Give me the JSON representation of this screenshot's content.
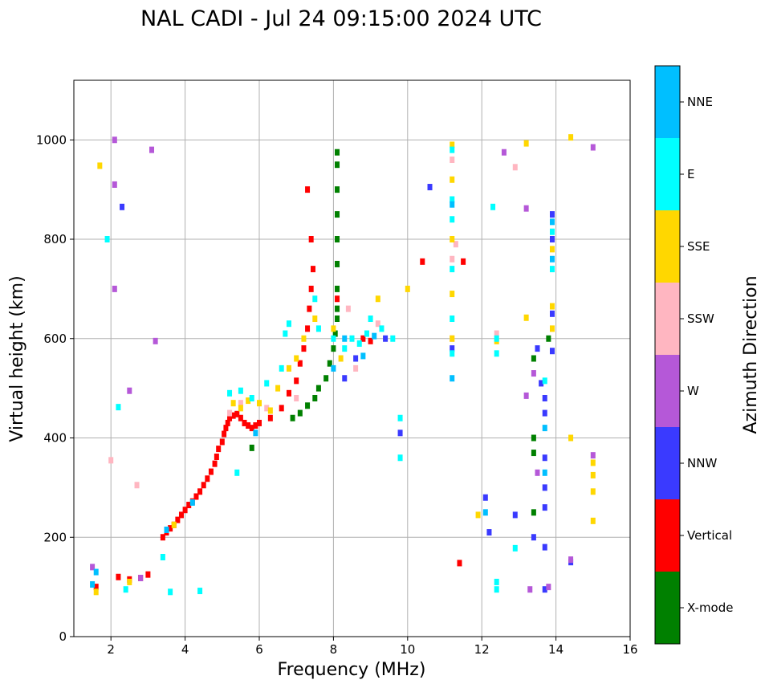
{
  "chart_data": {
    "type": "scatter",
    "title": "NAL CADI - Jul 24 09:15:00 2024 UTC",
    "xlabel": "Frequency (MHz)",
    "ylabel": "Virtual height (km)",
    "xlim": [
      1,
      16
    ],
    "ylim": [
      0,
      1120
    ],
    "xticks": [
      2,
      4,
      6,
      8,
      10,
      12,
      14,
      16
    ],
    "yticks": [
      0,
      200,
      400,
      600,
      800,
      1000
    ],
    "grid": true,
    "colorbar": {
      "label": "Azimuth Direction",
      "categories": [
        {
          "name": "X-mode",
          "color": "#008000"
        },
        {
          "name": "Vertical",
          "color": "#ff0000"
        },
        {
          "name": "NNW",
          "color": "#3a3aff"
        },
        {
          "name": "W",
          "color": "#b558d8"
        },
        {
          "name": "SSW",
          "color": "#ffb6c1"
        },
        {
          "name": "SSE",
          "color": "#ffd700"
        },
        {
          "name": "E",
          "color": "#00ffff"
        },
        {
          "name": "NNE",
          "color": "#00bfff"
        }
      ]
    },
    "series": [
      {
        "name": "Vertical",
        "points": [
          [
            3.4,
            200
          ],
          [
            3.5,
            210
          ],
          [
            3.6,
            218
          ],
          [
            3.7,
            225
          ],
          [
            3.8,
            235
          ],
          [
            3.9,
            245
          ],
          [
            4.0,
            255
          ],
          [
            4.1,
            265
          ],
          [
            4.2,
            272
          ],
          [
            4.3,
            282
          ],
          [
            4.4,
            292
          ],
          [
            4.5,
            305
          ],
          [
            4.6,
            318
          ],
          [
            4.7,
            332
          ],
          [
            4.8,
            348
          ],
          [
            4.85,
            362
          ],
          [
            4.9,
            378
          ],
          [
            5.0,
            392
          ],
          [
            5.05,
            408
          ],
          [
            5.1,
            420
          ],
          [
            5.15,
            430
          ],
          [
            5.2,
            440
          ],
          [
            5.3,
            445
          ],
          [
            5.4,
            448
          ],
          [
            5.5,
            440
          ],
          [
            5.6,
            430
          ],
          [
            5.7,
            425
          ],
          [
            5.8,
            420
          ],
          [
            5.9,
            425
          ],
          [
            6.0,
            430
          ],
          [
            6.3,
            440
          ],
          [
            6.6,
            460
          ],
          [
            6.8,
            490
          ],
          [
            7.0,
            515
          ],
          [
            7.1,
            550
          ],
          [
            7.2,
            580
          ],
          [
            7.3,
            620
          ],
          [
            7.35,
            660
          ],
          [
            7.4,
            700
          ],
          [
            7.45,
            740
          ],
          [
            7.4,
            800
          ],
          [
            7.3,
            900
          ],
          [
            8.1,
            680
          ],
          [
            8.8,
            600
          ],
          [
            9.0,
            595
          ],
          [
            2.2,
            120
          ],
          [
            2.5,
            115
          ],
          [
            2.8,
            118
          ],
          [
            3.0,
            125
          ],
          [
            1.6,
            100
          ],
          [
            11.5,
            755
          ],
          [
            10.4,
            755
          ],
          [
            11.4,
            148
          ]
        ]
      },
      {
        "name": "X-mode",
        "points": [
          [
            6.9,
            440
          ],
          [
            7.1,
            450
          ],
          [
            7.3,
            465
          ],
          [
            7.5,
            480
          ],
          [
            7.6,
            500
          ],
          [
            7.8,
            520
          ],
          [
            7.9,
            550
          ],
          [
            8.0,
            580
          ],
          [
            8.05,
            610
          ],
          [
            8.1,
            640
          ],
          [
            8.1,
            660
          ],
          [
            8.1,
            700
          ],
          [
            8.1,
            750
          ],
          [
            8.1,
            800
          ],
          [
            8.1,
            850
          ],
          [
            8.1,
            900
          ],
          [
            8.1,
            950
          ],
          [
            8.1,
            975
          ],
          [
            5.8,
            380
          ],
          [
            13.4,
            250
          ],
          [
            13.4,
            370
          ],
          [
            13.4,
            400
          ],
          [
            13.4,
            560
          ],
          [
            13.8,
            600
          ]
        ]
      },
      {
        "name": "NNW",
        "points": [
          [
            2.3,
            865
          ],
          [
            8.3,
            520
          ],
          [
            8.6,
            560
          ],
          [
            9.4,
            600
          ],
          [
            9.8,
            410
          ],
          [
            11.2,
            580
          ],
          [
            12.1,
            280
          ],
          [
            12.2,
            210
          ],
          [
            13.4,
            200
          ],
          [
            13.5,
            580
          ],
          [
            13.6,
            510
          ],
          [
            13.7,
            480
          ],
          [
            13.7,
            450
          ],
          [
            13.7,
            360
          ],
          [
            13.7,
            300
          ],
          [
            13.7,
            260
          ],
          [
            13.7,
            180
          ],
          [
            13.7,
            95
          ],
          [
            13.9,
            850
          ],
          [
            13.9,
            800
          ],
          [
            13.9,
            650
          ],
          [
            13.9,
            575
          ],
          [
            10.6,
            905
          ],
          [
            12.9,
            245
          ],
          [
            14.4,
            150
          ]
        ]
      },
      {
        "name": "W",
        "points": [
          [
            2.1,
            1000
          ],
          [
            3.1,
            980
          ],
          [
            3.2,
            595
          ],
          [
            2.5,
            495
          ],
          [
            1.5,
            140
          ],
          [
            2.8,
            118
          ],
          [
            13.2,
            485
          ],
          [
            13.4,
            530
          ],
          [
            13.5,
            330
          ],
          [
            13.3,
            95
          ],
          [
            13.8,
            100
          ],
          [
            14.4,
            155
          ],
          [
            15.0,
            985
          ],
          [
            15.0,
            365
          ],
          [
            12.6,
            975
          ],
          [
            13.2,
            862
          ],
          [
            2.1,
            910
          ],
          [
            2.1,
            700
          ]
        ]
      },
      {
        "name": "SSW",
        "points": [
          [
            5.2,
            450
          ],
          [
            5.5,
            470
          ],
          [
            6.2,
            460
          ],
          [
            7.0,
            480
          ],
          [
            8.4,
            660
          ],
          [
            8.6,
            540
          ],
          [
            9.2,
            630
          ],
          [
            11.2,
            960
          ],
          [
            11.2,
            760
          ],
          [
            11.2,
            600
          ],
          [
            12.4,
            610
          ],
          [
            12.9,
            945
          ],
          [
            11.3,
            790
          ],
          [
            2.0,
            355
          ],
          [
            2.7,
            305
          ]
        ]
      },
      {
        "name": "SSE",
        "points": [
          [
            1.7,
            948
          ],
          [
            3.7,
            225
          ],
          [
            5.3,
            470
          ],
          [
            5.5,
            460
          ],
          [
            5.7,
            475
          ],
          [
            6.0,
            470
          ],
          [
            6.3,
            455
          ],
          [
            6.5,
            500
          ],
          [
            6.8,
            540
          ],
          [
            7.0,
            560
          ],
          [
            7.2,
            600
          ],
          [
            7.5,
            640
          ],
          [
            8.0,
            620
          ],
          [
            8.2,
            560
          ],
          [
            9.2,
            680
          ],
          [
            10.0,
            700
          ],
          [
            11.2,
            990
          ],
          [
            11.2,
            920
          ],
          [
            11.2,
            800
          ],
          [
            11.2,
            690
          ],
          [
            11.2,
            600
          ],
          [
            12.4,
            595
          ],
          [
            13.2,
            993
          ],
          [
            13.2,
            642
          ],
          [
            13.9,
            665
          ],
          [
            13.9,
            620
          ],
          [
            13.9,
            780
          ],
          [
            14.4,
            1005
          ],
          [
            14.4,
            400
          ],
          [
            15.0,
            350
          ],
          [
            15.0,
            325
          ],
          [
            15.0,
            292
          ],
          [
            15.0,
            233
          ],
          [
            11.9,
            245
          ],
          [
            2.5,
            110
          ],
          [
            1.6,
            90
          ]
        ]
      },
      {
        "name": "E",
        "points": [
          [
            5.2,
            490
          ],
          [
            5.5,
            495
          ],
          [
            5.8,
            480
          ],
          [
            6.2,
            510
          ],
          [
            6.6,
            540
          ],
          [
            6.7,
            610
          ],
          [
            6.8,
            630
          ],
          [
            7.5,
            680
          ],
          [
            7.6,
            620
          ],
          [
            8.0,
            600
          ],
          [
            8.3,
            580
          ],
          [
            8.5,
            600
          ],
          [
            8.7,
            590
          ],
          [
            8.9,
            610
          ],
          [
            9.0,
            640
          ],
          [
            9.3,
            620
          ],
          [
            9.6,
            600
          ],
          [
            9.8,
            440
          ],
          [
            9.8,
            360
          ],
          [
            11.2,
            980
          ],
          [
            11.2,
            880
          ],
          [
            11.2,
            840
          ],
          [
            11.2,
            740
          ],
          [
            11.2,
            640
          ],
          [
            11.2,
            570
          ],
          [
            12.3,
            865
          ],
          [
            12.4,
            600
          ],
          [
            12.4,
            570
          ],
          [
            12.4,
            110
          ],
          [
            12.4,
            95
          ],
          [
            12.9,
            178
          ],
          [
            13.9,
            815
          ],
          [
            13.9,
            740
          ],
          [
            13.7,
            515
          ],
          [
            5.4,
            330
          ],
          [
            3.4,
            160
          ],
          [
            1.9,
            800
          ],
          [
            2.2,
            462
          ],
          [
            4.4,
            92
          ],
          [
            2.4,
            95
          ],
          [
            3.6,
            90
          ]
        ]
      },
      {
        "name": "NNE",
        "points": [
          [
            3.5,
            215
          ],
          [
            4.2,
            270
          ],
          [
            5.9,
            410
          ],
          [
            8.0,
            540
          ],
          [
            8.3,
            600
          ],
          [
            8.8,
            565
          ],
          [
            9.1,
            605
          ],
          [
            11.2,
            520
          ],
          [
            11.2,
            870
          ],
          [
            13.9,
            835
          ],
          [
            13.9,
            760
          ],
          [
            13.7,
            420
          ],
          [
            13.7,
            330
          ],
          [
            12.1,
            250
          ],
          [
            1.5,
            105
          ],
          [
            1.6,
            130
          ]
        ]
      }
    ]
  }
}
